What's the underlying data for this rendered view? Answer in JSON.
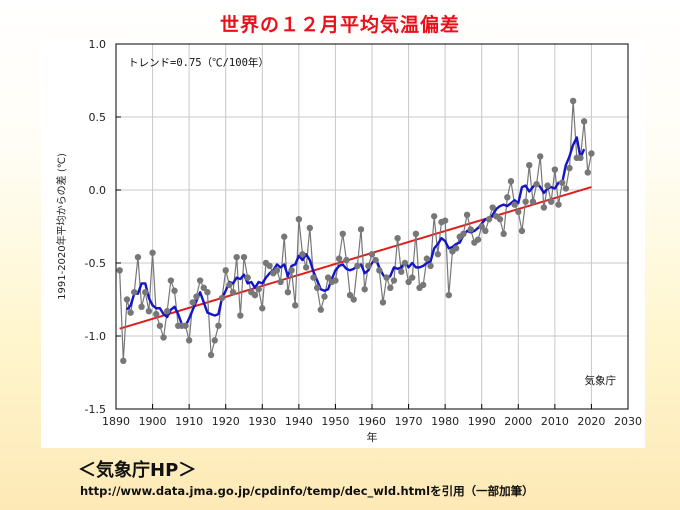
{
  "slide": {
    "title": "世界の１２月平均気温偏差",
    "source_title": "＜気象庁HP＞",
    "source_url": "http://www.data.jma.go.jp/cpdinfo/temp/dec_wld.htmlを引用（一部加筆）"
  },
  "chart_data": {
    "type": "line",
    "title": "世界の１２月平均気温偏差",
    "xlabel": "年",
    "ylabel": "1991-2020年平均からの差 (℃)",
    "xlim": [
      1890,
      2030
    ],
    "ylim": [
      -1.5,
      1.0
    ],
    "x_ticks": [
      1890,
      1900,
      1910,
      1920,
      1930,
      1940,
      1950,
      1960,
      1970,
      1980,
      1990,
      2000,
      2010,
      2020,
      2030
    ],
    "y_ticks": [
      1.0,
      0.5,
      0.0,
      -0.5,
      -1.0,
      -1.5
    ],
    "y_tick_labels": [
      "1.0",
      "0.5",
      "0.0",
      "-0.5",
      "-1.0",
      "-1.5"
    ],
    "grid": true,
    "annotations": {
      "trend_label": "トレンド=0.75（℃/100年）",
      "credit": "気象庁"
    },
    "colors": {
      "annual": "#777777",
      "five_year_mean": "#1414c8",
      "trend": "#e01b1b",
      "grid": "#c8c8c8"
    },
    "series": [
      {
        "kind": "annual",
        "x": [
          1891,
          1892,
          1893,
          1894,
          1895,
          1896,
          1897,
          1898,
          1899,
          1900,
          1901,
          1902,
          1903,
          1904,
          1905,
          1906,
          1907,
          1908,
          1909,
          1910,
          1911,
          1912,
          1913,
          1914,
          1915,
          1916,
          1917,
          1918,
          1919,
          1920,
          1921,
          1922,
          1923,
          1924,
          1925,
          1926,
          1927,
          1928,
          1929,
          1930,
          1931,
          1932,
          1933,
          1934,
          1935,
          1936,
          1937,
          1938,
          1939,
          1940,
          1941,
          1942,
          1943,
          1944,
          1945,
          1946,
          1947,
          1948,
          1949,
          1950,
          1951,
          1952,
          1953,
          1954,
          1955,
          1956,
          1957,
          1958,
          1959,
          1960,
          1961,
          1962,
          1963,
          1964,
          1965,
          1966,
          1967,
          1968,
          1969,
          1970,
          1971,
          1972,
          1973,
          1974,
          1975,
          1976,
          1977,
          1978,
          1979,
          1980,
          1981,
          1982,
          1983,
          1984,
          1985,
          1986,
          1987,
          1988,
          1989,
          1990,
          1991,
          1992,
          1993,
          1994,
          1995,
          1996,
          1997,
          1998,
          1999,
          2000,
          2001,
          2002,
          2003,
          2004,
          2005,
          2006,
          2007,
          2008,
          2009,
          2010,
          2011,
          2012,
          2013,
          2014,
          2015,
          2016,
          2017,
          2018,
          2019,
          2020
        ],
        "values": [
          -0.55,
          -1.17,
          -0.75,
          -0.84,
          -0.7,
          -0.46,
          -0.8,
          -0.7,
          -0.83,
          -0.43,
          -0.85,
          -0.93,
          -1.01,
          -0.83,
          -0.62,
          -0.69,
          -0.93,
          -0.93,
          -0.93,
          -1.03,
          -0.77,
          -0.73,
          -0.62,
          -0.67,
          -0.7,
          -1.13,
          -1.03,
          -0.93,
          -0.74,
          -0.55,
          -0.65,
          -0.7,
          -0.46,
          -0.86,
          -0.46,
          -0.6,
          -0.7,
          -0.72,
          -0.68,
          -0.81,
          -0.5,
          -0.52,
          -0.57,
          -0.55,
          -0.63,
          -0.32,
          -0.7,
          -0.55,
          -0.79,
          -0.2,
          -0.44,
          -0.53,
          -0.26,
          -0.6,
          -0.67,
          -0.82,
          -0.73,
          -0.6,
          -0.63,
          -0.62,
          -0.47,
          -0.3,
          -0.48,
          -0.72,
          -0.75,
          -0.52,
          -0.27,
          -0.68,
          -0.52,
          -0.44,
          -0.48,
          -0.55,
          -0.77,
          -0.6,
          -0.67,
          -0.62,
          -0.33,
          -0.56,
          -0.5,
          -0.63,
          -0.6,
          -0.3,
          -0.67,
          -0.65,
          -0.47,
          -0.52,
          -0.18,
          -0.44,
          -0.22,
          -0.21,
          -0.72,
          -0.42,
          -0.4,
          -0.32,
          -0.3,
          -0.17,
          -0.27,
          -0.36,
          -0.34,
          -0.25,
          -0.28,
          -0.2,
          -0.12,
          -0.18,
          -0.2,
          -0.3,
          -0.05,
          0.06,
          -0.1,
          -0.15,
          -0.28,
          -0.08,
          0.17,
          -0.08,
          0.04,
          0.23,
          -0.12,
          0.03,
          -0.08,
          0.14,
          -0.1,
          0.05,
          0.01,
          0.15,
          0.61,
          0.22,
          0.22,
          0.47,
          0.12,
          0.25
        ]
      },
      {
        "kind": "five_year_mean",
        "x": [
          1893,
          1894,
          1895,
          1896,
          1897,
          1898,
          1899,
          1900,
          1901,
          1902,
          1903,
          1904,
          1905,
          1906,
          1907,
          1908,
          1909,
          1910,
          1911,
          1912,
          1913,
          1914,
          1915,
          1916,
          1917,
          1918,
          1919,
          1920,
          1921,
          1922,
          1923,
          1924,
          1925,
          1926,
          1927,
          1928,
          1929,
          1930,
          1931,
          1932,
          1933,
          1934,
          1935,
          1936,
          1937,
          1938,
          1939,
          1940,
          1941,
          1942,
          1943,
          1944,
          1945,
          1946,
          1947,
          1948,
          1949,
          1950,
          1951,
          1952,
          1953,
          1954,
          1955,
          1956,
          1957,
          1958,
          1959,
          1960,
          1961,
          1962,
          1963,
          1964,
          1965,
          1966,
          1967,
          1968,
          1969,
          1970,
          1971,
          1972,
          1973,
          1974,
          1975,
          1976,
          1977,
          1978,
          1979,
          1980,
          1981,
          1982,
          1983,
          1984,
          1985,
          1986,
          1987,
          1988,
          1989,
          1990,
          1991,
          1992,
          1993,
          1994,
          1995,
          1996,
          1997,
          1998,
          1999,
          2000,
          2001,
          2002,
          2003,
          2004,
          2005,
          2006,
          2007,
          2008,
          2009,
          2010,
          2011,
          2012,
          2013,
          2014,
          2015,
          2016,
          2017,
          2018
        ],
        "values": [
          -0.82,
          -0.79,
          -0.71,
          -0.71,
          -0.64,
          -0.64,
          -0.74,
          -0.79,
          -0.81,
          -0.81,
          -0.85,
          -0.87,
          -0.82,
          -0.8,
          -0.85,
          -0.92,
          -0.93,
          -0.88,
          -0.82,
          -0.76,
          -0.7,
          -0.77,
          -0.84,
          -0.85,
          -0.86,
          -0.85,
          -0.74,
          -0.69,
          -0.63,
          -0.64,
          -0.6,
          -0.61,
          -0.58,
          -0.64,
          -0.63,
          -0.67,
          -0.63,
          -0.64,
          -0.6,
          -0.57,
          -0.55,
          -0.51,
          -0.53,
          -0.51,
          -0.59,
          -0.52,
          -0.51,
          -0.45,
          -0.48,
          -0.44,
          -0.48,
          -0.56,
          -0.62,
          -0.68,
          -0.69,
          -0.68,
          -0.61,
          -0.55,
          -0.52,
          -0.51,
          -0.54,
          -0.55,
          -0.54,
          -0.52,
          -0.51,
          -0.57,
          -0.55,
          -0.5,
          -0.47,
          -0.53,
          -0.58,
          -0.61,
          -0.59,
          -0.53,
          -0.54,
          -0.53,
          -0.49,
          -0.53,
          -0.5,
          -0.53,
          -0.53,
          -0.52,
          -0.5,
          -0.49,
          -0.4,
          -0.37,
          -0.33,
          -0.35,
          -0.4,
          -0.39,
          -0.37,
          -0.36,
          -0.31,
          -0.28,
          -0.29,
          -0.28,
          -0.26,
          -0.23,
          -0.2,
          -0.21,
          -0.17,
          -0.13,
          -0.11,
          -0.1,
          -0.11,
          -0.09,
          -0.07,
          -0.09,
          0.02,
          0.03,
          -0.01,
          0.02,
          0.05,
          0.02,
          -0.02,
          0.01,
          0.02,
          0.01,
          0.05,
          0.05,
          0.17,
          0.23,
          0.31,
          0.36,
          0.22,
          0.28
        ]
      },
      {
        "kind": "trend",
        "x": [
          1891,
          2020
        ],
        "values": [
          -0.95,
          0.02
        ]
      }
    ]
  }
}
